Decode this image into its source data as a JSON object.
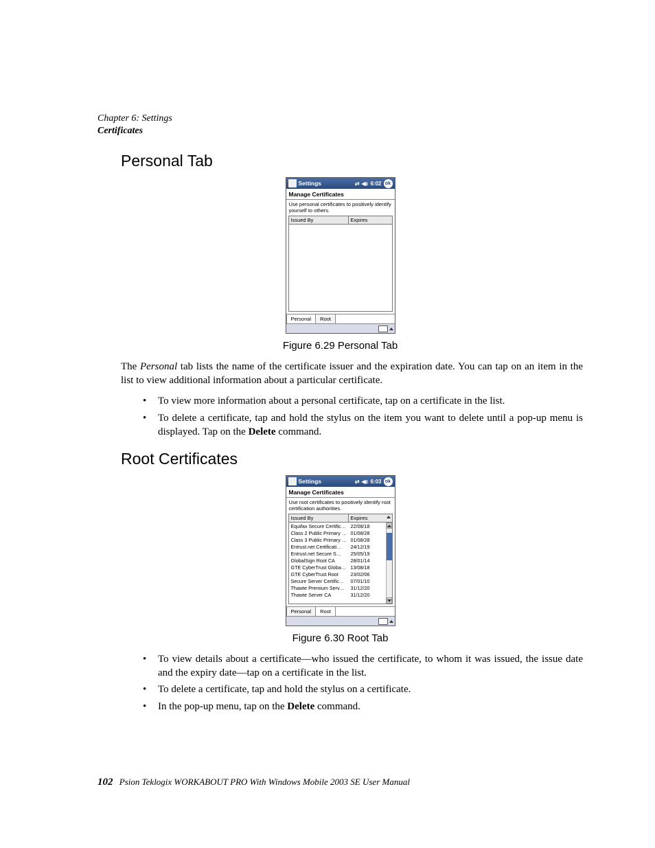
{
  "header": {
    "chapter": "Chapter 6: Settings",
    "section": "Certificates"
  },
  "headings": {
    "personal": "Personal Tab",
    "root": "Root Certificates"
  },
  "captions": {
    "fig629": "Figure 6.29 Personal Tab",
    "fig630": "Figure 6.30 Root Tab"
  },
  "body": {
    "personal_para_pre": "The ",
    "personal_para_em": "Personal",
    "personal_para_post": " tab lists the name of the certificate issuer and the expiration date. You can tap on an item in the list to view additional information about a particular certificate.",
    "personal_b1": "To view more information about a personal certificate, tap on a certificate in the list.",
    "personal_b2_pre": "To delete a certificate, tap and hold the stylus on the item you want to delete until a pop-up menu is displayed. Tap on the ",
    "personal_b2_bold": "Delete",
    "personal_b2_post": " command.",
    "root_b1": "To view details about a certificate—who issued the certificate, to whom it was issued, the issue date and the expiry date—tap on a certificate in the list.",
    "root_b2": "To delete a certificate, tap and hold the stylus on a certificate.",
    "root_b3_pre": "In the pop-up menu, tap on the ",
    "root_b3_bold": "Delete",
    "root_b3_post": " command."
  },
  "footer": {
    "page": "102",
    "text": "Psion Teklogix WORKABOUT PRO With Windows Mobile 2003 SE User Manual"
  },
  "shot1": {
    "title": "Settings",
    "time": "6:02",
    "ok": "ok",
    "mc": "Manage Certificates",
    "desc": "Use personal certificates to positively identify yourself to others.",
    "col_issued": "Issued By",
    "col_exp": "Expires",
    "tab_personal": "Personal",
    "tab_root": "Root"
  },
  "shot2": {
    "title": "Settings",
    "time": "6:03",
    "ok": "ok",
    "mc": "Manage Certificates",
    "desc": "Use root certificates to positively identify root certification authorities.",
    "col_issued": "Issued By",
    "col_exp": "Expires",
    "tab_personal": "Personal",
    "tab_root": "Root",
    "rows": [
      {
        "issued": "Equifax Secure Certific…",
        "exp": "22/08/18"
      },
      {
        "issued": "Class 2 Public Primary …",
        "exp": "01/08/28"
      },
      {
        "issued": "Class 3 Public Primary …",
        "exp": "01/08/28"
      },
      {
        "issued": "Entrust.net Certificati…",
        "exp": "24/12/19"
      },
      {
        "issued": "Entrust.net Secure S…",
        "exp": "25/05/19"
      },
      {
        "issued": "GlobalSign Root CA",
        "exp": "28/01/14"
      },
      {
        "issued": "GTE CyberTrust Globa…",
        "exp": "13/08/18"
      },
      {
        "issued": "GTE CyberTrust Root",
        "exp": "23/02/06"
      },
      {
        "issued": "Secure Server Certific…",
        "exp": "07/01/10"
      },
      {
        "issued": "Thawte Premium Serv…",
        "exp": "31/12/20"
      },
      {
        "issued": "Thawte Server CA",
        "exp": "31/12/20"
      }
    ]
  }
}
